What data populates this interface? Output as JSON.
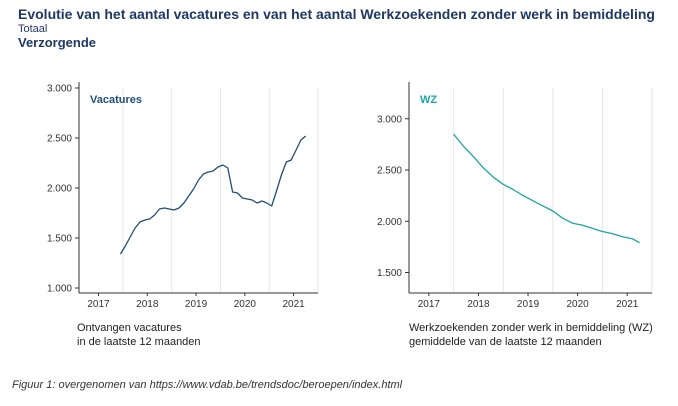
{
  "header": {
    "title": "Evolutie van het aantal vacatures en van het aantal Werkzoekenden zonder werk in bemiddeling",
    "subtitle": "Totaal",
    "subtitle2": "Verzorgende"
  },
  "chart_data": [
    {
      "type": "line",
      "title": "",
      "series_label": "Vacatures",
      "color": "#1f4e79",
      "xlim": [
        2016.6,
        2021.5
      ],
      "ylim": [
        950,
        3000
      ],
      "x_ticks": [
        2017,
        2018,
        2019,
        2020,
        2021
      ],
      "x_tick_labels": [
        "2017",
        "2018",
        "2019",
        "2020",
        "2021"
      ],
      "y_ticks": [
        1000,
        1500,
        2000,
        2500,
        3000
      ],
      "y_tick_labels": [
        "1.000",
        "1.500",
        "2.000",
        "2.500",
        "3.000"
      ],
      "grid": "vertical",
      "caption": [
        "Ontvangen vacatures",
        "in de laatste 12 maanden"
      ],
      "series": [
        {
          "x": [
            2017.45,
            2017.55,
            2017.65,
            2017.75,
            2017.85,
            2017.95,
            2018.05,
            2018.15,
            2018.25,
            2018.35,
            2018.45,
            2018.55,
            2018.65,
            2018.75,
            2018.85,
            2018.95,
            2019.05,
            2019.15,
            2019.25,
            2019.35,
            2019.45,
            2019.55,
            2019.65,
            2019.75,
            2019.85,
            2019.95,
            2020.05,
            2020.15,
            2020.25,
            2020.35,
            2020.45,
            2020.55,
            2020.65,
            2020.75,
            2020.85,
            2020.95,
            2021.05,
            2021.15,
            2021.25
          ],
          "y": [
            1340,
            1420,
            1510,
            1600,
            1660,
            1680,
            1690,
            1730,
            1790,
            1800,
            1790,
            1780,
            1800,
            1850,
            1920,
            1990,
            2080,
            2140,
            2160,
            2170,
            2210,
            2230,
            2200,
            1960,
            1950,
            1900,
            1890,
            1880,
            1850,
            1870,
            1850,
            1820,
            1970,
            2130,
            2260,
            2280,
            2380,
            2480,
            2520
          ]
        }
      ]
    },
    {
      "type": "line",
      "title": "",
      "series_label": "WZ",
      "color": "#1aa5a5",
      "xlim": [
        2016.6,
        2021.5
      ],
      "ylim": [
        1300,
        3300
      ],
      "x_ticks": [
        2017,
        2018,
        2019,
        2020,
        2021
      ],
      "x_tick_labels": [
        "2017",
        "2018",
        "2019",
        "2020",
        "2021"
      ],
      "y_ticks": [
        1500,
        2000,
        2500,
        3000
      ],
      "y_tick_labels": [
        "1.500",
        "2.000",
        "2.500",
        "3.000"
      ],
      "grid": "vertical",
      "caption": [
        "Werkzoekenden zonder werk in bemiddeling (WZ)",
        "gemiddelde van de laatste 12 maanden"
      ],
      "series": [
        {
          "x": [
            2017.5,
            2017.7,
            2017.9,
            2018.1,
            2018.3,
            2018.5,
            2018.7,
            2018.9,
            2019.1,
            2019.3,
            2019.5,
            2019.7,
            2019.9,
            2020.1,
            2020.3,
            2020.5,
            2020.7,
            2020.9,
            2021.1,
            2021.25
          ],
          "y": [
            2850,
            2730,
            2630,
            2520,
            2430,
            2360,
            2310,
            2250,
            2200,
            2150,
            2100,
            2030,
            1980,
            1960,
            1930,
            1900,
            1880,
            1850,
            1830,
            1790
          ]
        }
      ]
    }
  ],
  "figure_caption": "Figuur 1: overgenomen van https://www.vdab.be/trendsdoc/beroepen/index.html"
}
